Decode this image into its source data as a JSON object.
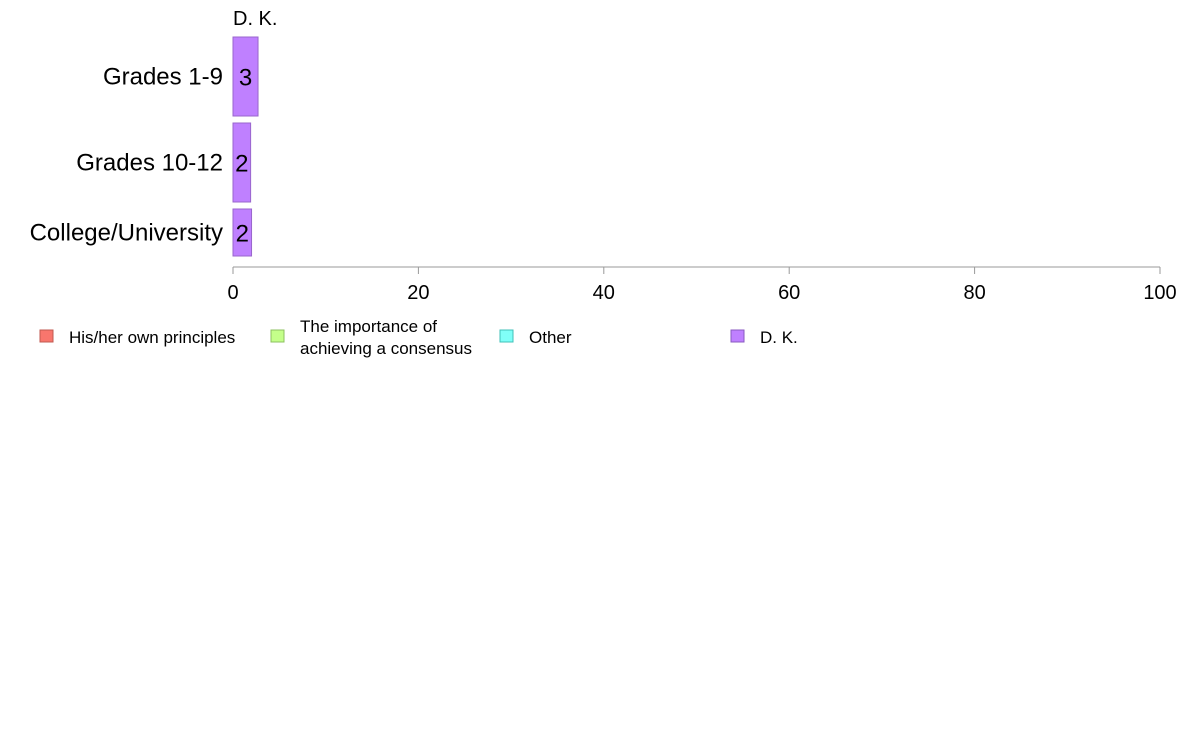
{
  "chart_data": {
    "type": "bar",
    "orientation": "horizontal",
    "stacked": true,
    "title": "D. K.",
    "categories": [
      "Grades 1-9",
      "Grades 10-12",
      "College/University"
    ],
    "series": [
      {
        "name": "His/her own principles",
        "color": "#F8766D",
        "values": [
          0,
          0,
          0
        ]
      },
      {
        "name": "The importance of achieving a consensus",
        "color": "#B8FF6E",
        "values": [
          0,
          0,
          0
        ]
      },
      {
        "name": "Other",
        "color": "#6EFFF5",
        "values": [
          0,
          0,
          0
        ]
      },
      {
        "name": "D. K.",
        "color": "#BF80FF",
        "values": [
          2.7,
          1.9,
          2.0
        ]
      }
    ],
    "data_labels": [
      "3",
      "2",
      "2"
    ],
    "xlim": [
      0,
      100
    ],
    "xticks": [
      "0",
      "20",
      "40",
      "60",
      "80",
      "100"
    ],
    "xlabel": "",
    "ylabel": "",
    "grid": false,
    "legend": {
      "position": "bottom",
      "entries": [
        {
          "lines": [
            "His/her own principles"
          ],
          "color": "#F8766D",
          "border": "#C05A50"
        },
        {
          "lines": [
            "The importance of",
            "achieving a consensus"
          ],
          "color": "#C4FF8A",
          "border": "#8CC060"
        },
        {
          "lines": [
            "Other"
          ],
          "color": "#80FFF8",
          "border": "#40C0B8"
        },
        {
          "lines": [
            "D. K."
          ],
          "color": "#BF80FF",
          "border": "#8A5AC0"
        }
      ]
    }
  }
}
